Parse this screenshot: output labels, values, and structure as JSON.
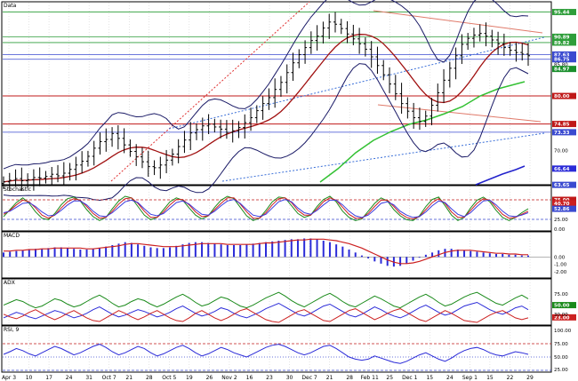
{
  "chart_data": [
    {
      "type": "candlestick",
      "panel": "price",
      "title": "Data",
      "grid": true,
      "ylim": [
        64,
        97
      ],
      "markers": [
        {
          "value": 95.44,
          "color": "#2e9e3a"
        },
        {
          "value": 90.89,
          "color": "#2e9e3a"
        },
        {
          "value": 89.82,
          "color": "#2e9e3a"
        },
        {
          "value": 87.63,
          "color": "#3a4ad0"
        },
        {
          "value": 86.75,
          "color": "#3a4ad0"
        },
        {
          "value": 85.8,
          "color": "#000000"
        },
        {
          "value": 84.97,
          "color": "#1a8f2c"
        },
        {
          "value": 80.0,
          "color": "#c01818"
        },
        {
          "value": 74.85,
          "color": "#c01818"
        },
        {
          "value": 73.33,
          "color": "#3a4ad0"
        },
        {
          "value": 70.0,
          "color": "#000000"
        },
        {
          "value": 66.64,
          "color": "#2b2bd8"
        },
        {
          "value": 63.65,
          "color": "#3a4ad0"
        }
      ],
      "series": [
        {
          "name": "close",
          "color": "#000000",
          "values": [
            64.2,
            64.5,
            64.8,
            64.4,
            64.6,
            65.0,
            64.9,
            65.2,
            65.6,
            65.3,
            65.8,
            66.5,
            67.3,
            68.0,
            68.9,
            70.4,
            71.6,
            72.0,
            73.1,
            72.2,
            71.0,
            69.8,
            68.8,
            67.9,
            67.0,
            66.8,
            67.3,
            68.2,
            69.3,
            70.7,
            71.9,
            73.2,
            73.8,
            74.5,
            74.8,
            74.3,
            73.9,
            73.3,
            73.6,
            74.2,
            75.1,
            76.0,
            77.3,
            78.6,
            79.7,
            81.2,
            82.5,
            84.3,
            86.1,
            87.6,
            88.9,
            90.2,
            91.0,
            92.5,
            93.6,
            93.2,
            92.4,
            91.4,
            90.5,
            89.6,
            88.6,
            87.2,
            85.6,
            83.9,
            82.2,
            80.4,
            78.6,
            77.2,
            76.0,
            75.3,
            76.3,
            78.3,
            80.6,
            82.9,
            85.1,
            87.4,
            89.5,
            90.6,
            91.2,
            91.5,
            91.0,
            90.3,
            89.6,
            88.9,
            88.4,
            88.0,
            87.7,
            87.4
          ]
        }
      ]
    },
    {
      "type": "line",
      "panel": "stochastic",
      "title": "Stochastic",
      "ylim": [
        0,
        100
      ],
      "ticks": [
        "75.00",
        "40.70",
        "52.86",
        "25.00",
        "0.00"
      ],
      "series": [
        {
          "name": "%K",
          "color": "#1a8a1a",
          "values": [
            32,
            50,
            68,
            80,
            66,
            44,
            28,
            24,
            40,
            62,
            78,
            82,
            72,
            50,
            32,
            22,
            30,
            52,
            72,
            84,
            80,
            58,
            36,
            24,
            30,
            50,
            70,
            80,
            74,
            54,
            36,
            26,
            34,
            56,
            74,
            84,
            78,
            56,
            34,
            22,
            28,
            48,
            70,
            82,
            80,
            60,
            40,
            30,
            36,
            58,
            76,
            84,
            70,
            46,
            30,
            22,
            26,
            46,
            66,
            80,
            72,
            50,
            34,
            24,
            22,
            34,
            58,
            76,
            82,
            60,
            36,
            22,
            30,
            54,
            74,
            82,
            70,
            48,
            30,
            22,
            30,
            42,
            52
          ]
        },
        {
          "name": "%D",
          "color": "#cc2020",
          "values": [
            38,
            48,
            62,
            74,
            70,
            54,
            36,
            28,
            36,
            54,
            70,
            78,
            74,
            58,
            40,
            28,
            30,
            46,
            64,
            78,
            80,
            66,
            46,
            30,
            30,
            44,
            62,
            76,
            76,
            62,
            44,
            32,
            34,
            50,
            66,
            80,
            80,
            64,
            44,
            28,
            28,
            42,
            62,
            78,
            80,
            68,
            48,
            36,
            36,
            52,
            70,
            80,
            74,
            56,
            38,
            28,
            28,
            40,
            58,
            74,
            74,
            58,
            40,
            30,
            26,
            32,
            50,
            68,
            78,
            66,
            44,
            30,
            30,
            48,
            66,
            78,
            74,
            56,
            38,
            28,
            30,
            38,
            46
          ]
        },
        {
          "name": "slow",
          "color": "#3a3adf",
          "values": [
            42,
            46,
            56,
            66,
            68,
            58,
            44,
            34,
            36,
            48,
            62,
            72,
            72,
            62,
            46,
            34,
            32,
            42,
            56,
            70,
            74,
            68,
            52,
            38,
            34,
            40,
            54,
            68,
            72,
            64,
            50,
            38,
            36,
            46,
            60,
            72,
            76,
            66,
            50,
            36,
            32,
            38,
            54,
            70,
            76,
            70,
            54,
            42,
            38,
            48,
            62,
            74,
            74,
            62,
            46,
            34,
            30,
            36,
            50,
            66,
            70,
            62,
            46,
            36,
            30,
            32,
            44,
            60,
            72,
            68,
            52,
            38,
            32,
            42,
            58,
            72,
            74,
            62,
            46,
            34,
            32,
            36,
            42
          ]
        }
      ]
    },
    {
      "type": "bar",
      "panel": "macd",
      "title": "MACD",
      "ylim": [
        -2.6,
        2.8
      ],
      "ticks": [
        "0.00",
        "-1.00",
        "-2.00"
      ],
      "series": [
        {
          "name": "histogram",
          "color": "#2b2bd8",
          "values": [
            0.6,
            0.7,
            0.8,
            0.9,
            1.0,
            1.1,
            1.1,
            1.2,
            1.3,
            1.3,
            1.2,
            1.1,
            1.0,
            1.0,
            1.1,
            1.2,
            1.4,
            1.6,
            1.8,
            2.0,
            1.9,
            1.7,
            1.5,
            1.3,
            1.2,
            1.2,
            1.3,
            1.5,
            1.7,
            1.9,
            2.0,
            2.0,
            1.9,
            1.8,
            1.7,
            1.6,
            1.6,
            1.6,
            1.7,
            1.8,
            1.9,
            2.0,
            2.1,
            2.2,
            2.3,
            2.4,
            2.4,
            2.5,
            2.5,
            2.4,
            2.2,
            2.0,
            1.7,
            1.4,
            1.0,
            0.6,
            0.2,
            -0.2,
            -0.6,
            -0.9,
            -1.2,
            -1.3,
            -1.2,
            -0.9,
            -0.5,
            -0.1,
            0.3,
            0.6,
            0.9,
            1.1,
            1.1,
            1.0,
            0.9,
            0.8,
            0.7,
            0.6,
            0.5,
            0.4,
            0.4,
            0.3,
            0.3,
            0.2,
            0.2
          ]
        },
        {
          "name": "signal",
          "color": "#cc2020",
          "values": [
            0.8,
            0.8,
            0.9,
            0.9,
            1.0,
            1.0,
            1.1,
            1.1,
            1.2,
            1.2,
            1.2,
            1.2,
            1.2,
            1.1,
            1.1,
            1.2,
            1.3,
            1.4,
            1.5,
            1.7,
            1.8,
            1.8,
            1.7,
            1.6,
            1.5,
            1.4,
            1.4,
            1.4,
            1.5,
            1.6,
            1.7,
            1.8,
            1.8,
            1.8,
            1.8,
            1.7,
            1.7,
            1.7,
            1.7,
            1.7,
            1.8,
            1.9,
            1.9,
            2.0,
            2.1,
            2.2,
            2.3,
            2.3,
            2.4,
            2.4,
            2.4,
            2.3,
            2.2,
            2.0,
            1.8,
            1.5,
            1.2,
            0.8,
            0.4,
            0.0,
            -0.4,
            -0.7,
            -0.9,
            -0.9,
            -0.8,
            -0.6,
            -0.3,
            0.0,
            0.3,
            0.6,
            0.8,
            0.9,
            0.9,
            0.9,
            0.8,
            0.7,
            0.6,
            0.5,
            0.5,
            0.4,
            0.4,
            0.3,
            0.3
          ]
        }
      ]
    },
    {
      "type": "line",
      "panel": "adx",
      "title": "ADX",
      "ylim": [
        10,
        100
      ],
      "ticks": [
        "75.00",
        "50.00",
        "23.00",
        "30.00"
      ],
      "series": [
        {
          "name": "ADX",
          "color": "#1a8a1a",
          "values": [
            50,
            56,
            62,
            58,
            50,
            44,
            48,
            56,
            64,
            60,
            52,
            46,
            50,
            58,
            66,
            72,
            64,
            54,
            46,
            50,
            58,
            64,
            60,
            52,
            46,
            52,
            60,
            68,
            74,
            66,
            56,
            48,
            52,
            60,
            68,
            64,
            56,
            48,
            44,
            50,
            58,
            66,
            72,
            78,
            70,
            60,
            52,
            46,
            54,
            62,
            70,
            76,
            68,
            58,
            50,
            46,
            54,
            62,
            70,
            64,
            56,
            48,
            44,
            52,
            60,
            68,
            74,
            66,
            56,
            48,
            52,
            60,
            68,
            74,
            78,
            70,
            62,
            54,
            50,
            58,
            66,
            72,
            64
          ]
        },
        {
          "name": "+DI",
          "color": "#2b2bd8",
          "values": [
            22,
            28,
            34,
            30,
            24,
            20,
            26,
            32,
            38,
            34,
            28,
            22,
            26,
            32,
            40,
            46,
            38,
            30,
            24,
            28,
            34,
            40,
            36,
            30,
            24,
            28,
            34,
            42,
            48,
            40,
            32,
            26,
            30,
            36,
            44,
            40,
            32,
            26,
            22,
            28,
            34,
            42,
            48,
            54,
            46,
            38,
            30,
            26,
            32,
            40,
            48,
            52,
            44,
            36,
            28,
            24,
            30,
            38,
            46,
            40,
            32,
            26,
            22,
            28,
            36,
            44,
            50,
            42,
            34,
            28,
            32,
            40,
            48,
            52,
            56,
            48,
            40,
            34,
            30,
            36,
            44,
            48,
            40
          ]
        },
        {
          "name": "-DI",
          "color": "#cc2020",
          "values": [
            30,
            24,
            20,
            26,
            34,
            40,
            32,
            24,
            18,
            24,
            32,
            38,
            30,
            22,
            16,
            14,
            22,
            30,
            38,
            32,
            24,
            18,
            24,
            32,
            38,
            30,
            22,
            16,
            14,
            22,
            32,
            38,
            30,
            22,
            16,
            22,
            30,
            38,
            42,
            34,
            26,
            18,
            14,
            12,
            20,
            28,
            36,
            40,
            32,
            24,
            16,
            14,
            22,
            30,
            38,
            42,
            34,
            26,
            18,
            24,
            32,
            38,
            42,
            34,
            26,
            18,
            14,
            22,
            30,
            38,
            32,
            24,
            16,
            14,
            12,
            20,
            28,
            34,
            38,
            30,
            22,
            18,
            22
          ]
        }
      ]
    },
    {
      "type": "line",
      "panel": "rsi",
      "title": "RSI, 9",
      "ylim": [
        25,
        100
      ],
      "ticks": [
        "100.00",
        "75.00",
        "50.00",
        "25.00"
      ],
      "series": [
        {
          "name": "RSI",
          "color": "#2b2bd8",
          "values": [
            55,
            60,
            66,
            62,
            56,
            52,
            58,
            64,
            70,
            66,
            60,
            54,
            58,
            64,
            70,
            74,
            68,
            60,
            54,
            58,
            64,
            70,
            66,
            58,
            52,
            56,
            62,
            68,
            72,
            66,
            58,
            52,
            56,
            62,
            68,
            64,
            58,
            54,
            50,
            56,
            62,
            68,
            72,
            74,
            70,
            64,
            58,
            54,
            58,
            64,
            70,
            72,
            66,
            58,
            50,
            46,
            44,
            46,
            52,
            48,
            44,
            40,
            38,
            42,
            48,
            54,
            58,
            52,
            46,
            42,
            48,
            56,
            62,
            66,
            68,
            64,
            58,
            54,
            52,
            56,
            60,
            58,
            55
          ]
        }
      ]
    }
  ],
  "x_axis": {
    "ticks": [
      "Apr 3",
      "10",
      "17",
      "24",
      "31",
      "Oct 7",
      "21",
      "28",
      "Oct 5",
      "19",
      "26",
      "Nov 2",
      "16",
      "23",
      "30",
      "Dec 7",
      "21",
      "28",
      "Feb 11",
      "25",
      "Dec 1",
      "15",
      "24",
      "Sep 1",
      "15",
      "22",
      "29"
    ]
  }
}
